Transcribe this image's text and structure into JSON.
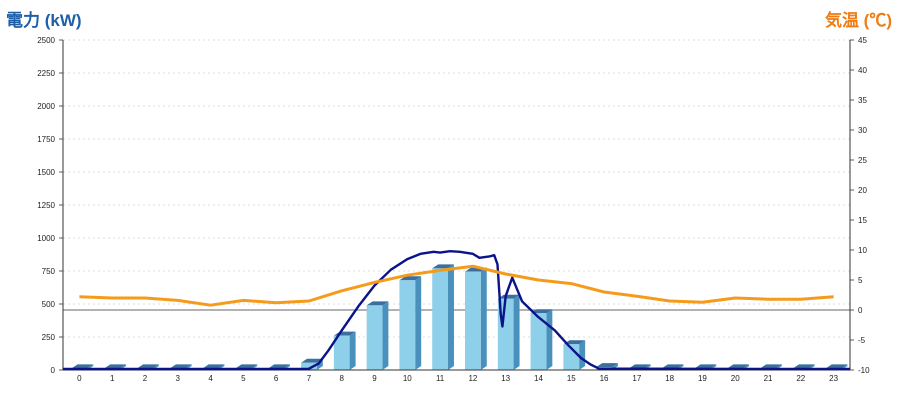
{
  "chart_data": {
    "type": "bar",
    "categories": [
      "0",
      "1",
      "2",
      "3",
      "4",
      "5",
      "6",
      "7",
      "8",
      "9",
      "10",
      "11",
      "12",
      "13",
      "14",
      "15",
      "16",
      "17",
      "18",
      "19",
      "20",
      "21",
      "22",
      "23"
    ],
    "series": [
      {
        "name": "",
        "kind": "bar",
        "axis": "left",
        "values": [
          12,
          12,
          12,
          12,
          12,
          12,
          12,
          55,
          260,
          490,
          680,
          770,
          745,
          540,
          430,
          195,
          22,
          12,
          12,
          12,
          12,
          12,
          12,
          12
        ],
        "color": "#8ecfea"
      },
      {
        "name": "",
        "kind": "line",
        "axis": "left",
        "x": [
          7.0,
          7.3,
          7.6,
          8.0,
          8.5,
          9.0,
          9.5,
          10.0,
          10.4,
          10.8,
          11.0,
          11.3,
          11.6,
          12.0,
          12.2,
          12.5,
          12.65,
          12.75,
          12.85,
          12.9,
          13.0,
          13.2,
          13.5,
          14.0,
          14.5,
          14.9,
          15.3,
          15.6,
          15.85
        ],
        "y": [
          10,
          50,
          150,
          300,
          480,
          640,
          760,
          840,
          880,
          895,
          890,
          900,
          895,
          880,
          850,
          860,
          870,
          800,
          420,
          330,
          560,
          700,
          520,
          400,
          300,
          190,
          90,
          40,
          10
        ],
        "color": "#0a1488"
      },
      {
        "name": "",
        "kind": "line",
        "axis": "right",
        "x": [
          0,
          1,
          2,
          3,
          4,
          5,
          6,
          7,
          8,
          9,
          10,
          11,
          12,
          13,
          14,
          15,
          16,
          17,
          18,
          19,
          20,
          21,
          22,
          23
        ],
        "y": [
          2.2,
          2.0,
          2.0,
          1.6,
          0.8,
          1.6,
          1.2,
          1.5,
          3.2,
          4.6,
          5.8,
          6.6,
          7.3,
          6.0,
          5.0,
          4.4,
          3.0,
          2.3,
          1.5,
          1.3,
          2.0,
          1.8,
          1.8,
          2.2
        ],
        "color": "#f59b1b"
      }
    ],
    "y_left": {
      "label": "電力 (kW)",
      "min": 0,
      "max": 2500,
      "ticks": [
        "0",
        "250",
        "500",
        "750",
        "1000",
        "1250",
        "1500",
        "1750",
        "2000",
        "2250",
        "2500"
      ]
    },
    "y_right": {
      "label": "気温 (℃)",
      "min": -10,
      "max": 45,
      "ticks": [
        "-10",
        "-5",
        "0",
        "5",
        "10",
        "15",
        "20",
        "25",
        "30",
        "35",
        "40",
        "45"
      ]
    },
    "grid": true
  }
}
